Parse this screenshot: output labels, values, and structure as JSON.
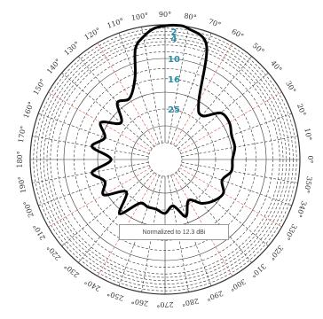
{
  "chart_data": {
    "type": "polar",
    "note": "Normalized to 12.3 dBi",
    "angle_labels": [
      "0°",
      "10°",
      "20°",
      "30°",
      "40°",
      "50°",
      "60°",
      "70°",
      "80°",
      "90°",
      "100°",
      "110°",
      "120°",
      "130°",
      "140°",
      "150°",
      "160°",
      "170°",
      "180°",
      "190°",
      "200°",
      "210°",
      "220°",
      "230°",
      "240°",
      "250°",
      "260°",
      "270°",
      "280°",
      "290°",
      "300°",
      "310°",
      "320°",
      "330°",
      "340°",
      "350°"
    ],
    "ring_labels": [
      "2",
      "4",
      "10",
      "16",
      "25"
    ],
    "ring_values_db": [
      -2,
      -4,
      -10,
      -16,
      -25
    ],
    "r_range_db": [
      -40,
      0
    ],
    "angles_deg": [
      0,
      10,
      20,
      30,
      40,
      50,
      60,
      70,
      80,
      85,
      90,
      95,
      100,
      105,
      110,
      120,
      130,
      140,
      150,
      160,
      170,
      180,
      190,
      200,
      210,
      220,
      230,
      240,
      250,
      260,
      270,
      280,
      290,
      300,
      310,
      320,
      330,
      340,
      350
    ],
    "values_db": [
      -20,
      -19,
      -19,
      -18,
      -18.5,
      -23,
      -20,
      -4,
      -0.5,
      0,
      -0.3,
      -1,
      -3,
      -6,
      -14,
      -19,
      -18,
      -23,
      -18,
      -21,
      -18,
      -24,
      -18,
      -21,
      -19,
      -25,
      -19,
      -25,
      -25,
      -25,
      -24,
      -26,
      -22,
      -26,
      -23,
      -21,
      -20,
      -22,
      -20
    ],
    "colors": {
      "grid": "#333333",
      "grid_red": "#e04a4a",
      "trace": "#000000",
      "ring_text": "#2f8fa6"
    }
  }
}
